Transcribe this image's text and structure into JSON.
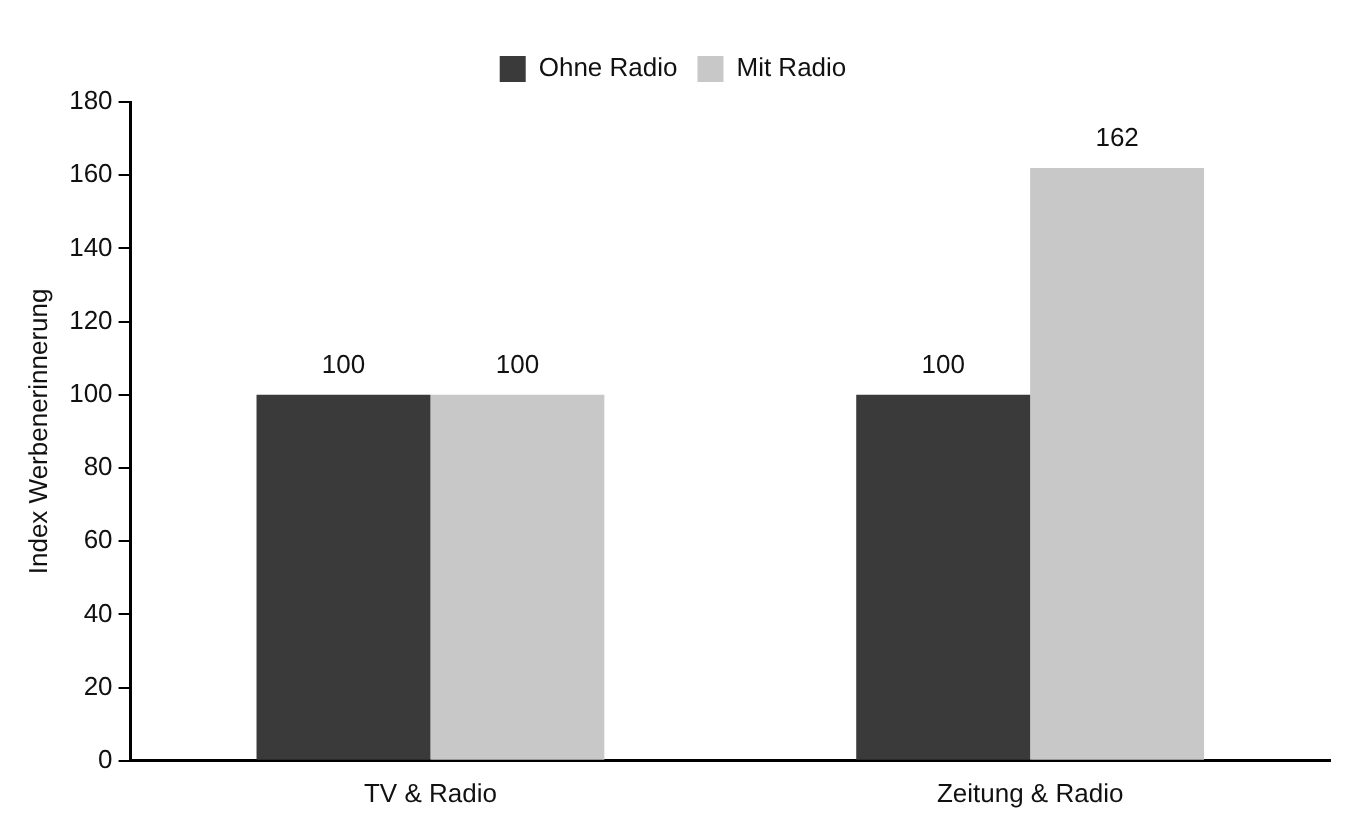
{
  "chart_data": {
    "type": "bar",
    "ylabel": "Index Werbenerinnerung",
    "categories": [
      "TV & Radio",
      "Zeitung & Radio"
    ],
    "series": [
      {
        "name": "Ohne Radio",
        "color": "#3a3a3a",
        "values": [
          100,
          100
        ]
      },
      {
        "name": "Mit Radio",
        "color": "#c8c8c8",
        "values": [
          100,
          162
        ]
      }
    ],
    "ylim": [
      0,
      180
    ],
    "yticks": [
      0,
      20,
      40,
      60,
      80,
      100,
      120,
      140,
      160,
      180
    ],
    "grid": false,
    "legend": "top",
    "data_labels": true
  }
}
